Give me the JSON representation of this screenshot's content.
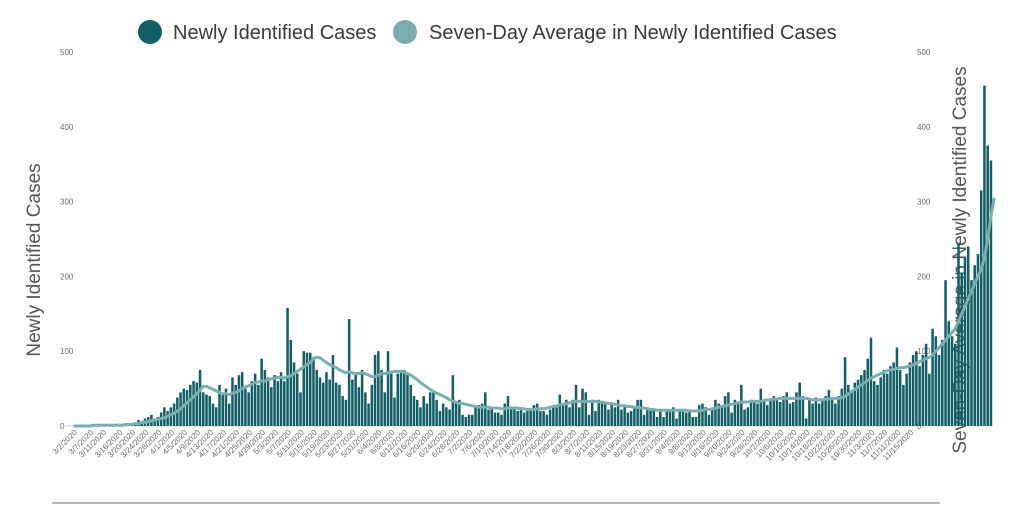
{
  "colors": {
    "bars": "#135f66",
    "average_line": "#7aaeb1",
    "axis": "#d0d0d0",
    "text": "#555555"
  },
  "chart_data": {
    "type": "bar",
    "legend": [
      "Newly Identified Cases",
      "Seven-Day Average in Newly Identified Cases"
    ],
    "legend_position": "top",
    "ylabel_left": "Newly Identified Cases",
    "ylabel_right": "Seven-Day Average in Newly Identified Cases",
    "ylim": [
      0,
      500
    ],
    "yticks": [
      0,
      100,
      200,
      300,
      400,
      500
    ],
    "right_yticks": [
      0,
      100,
      200,
      300,
      400,
      500
    ],
    "grid": false,
    "x_start": "3/2/2020",
    "x_end": "11/17/2020",
    "xtick_labels": [
      "3/2/2020",
      "3/7/2020",
      "3/11/2020",
      "3/16/2020",
      "3/20/2020",
      "3/24/2020",
      "3/28/2020",
      "4/1/2020",
      "4/5/2020",
      "4/9/2020",
      "4/13/2020",
      "4/17/2020",
      "4/21/2020",
      "4/25/2020",
      "4/29/2020",
      "5/3/2020",
      "5/7/2020",
      "5/11/2020",
      "5/15/2020",
      "5/19/2020",
      "5/23/2020",
      "5/27/2020",
      "5/31/2020",
      "6/4/2020",
      "6/8/2020",
      "6/12/2020",
      "6/16/2020",
      "6/20/2020",
      "6/24/2020",
      "6/28/2020",
      "7/2/2020",
      "7/6/2020",
      "7/10/2020",
      "7/14/2020",
      "7/18/2020",
      "7/22/2020",
      "7/26/2020",
      "7/30/2020",
      "8/3/2020",
      "8/7/2020",
      "8/11/2020",
      "8/15/2020",
      "8/19/2020",
      "8/23/2020",
      "8/27/2020",
      "8/31/2020",
      "9/4/2020",
      "9/8/2020",
      "9/12/2020",
      "9/16/2020",
      "9/20/2020",
      "9/24/2020",
      "9/28/2020",
      "10/2/2020",
      "10/6/2020",
      "10/10/2020",
      "10/14/2020",
      "10/18/2020",
      "10/22/2020",
      "10/26/2020",
      "10/30/2020",
      "11/3/2020",
      "11/7/2020",
      "11/11/2020",
      "11/15/2020"
    ],
    "series": [
      {
        "name": "Newly Identified Cases",
        "type": "bar",
        "values": [
          0,
          0,
          0,
          0,
          0,
          2,
          1,
          0,
          0,
          0,
          0,
          0,
          0,
          2,
          3,
          2,
          3,
          1,
          4,
          5,
          8,
          6,
          10,
          12,
          15,
          10,
          12,
          18,
          25,
          20,
          25,
          30,
          38,
          45,
          50,
          48,
          55,
          60,
          58,
          75,
          45,
          42,
          40,
          30,
          25,
          55,
          42,
          50,
          30,
          65,
          55,
          68,
          72,
          50,
          45,
          60,
          70,
          55,
          90,
          75,
          65,
          52,
          68,
          60,
          72,
          60,
          158,
          115,
          85,
          70,
          45,
          100,
          98,
          98,
          92,
          75,
          65,
          58,
          72,
          62,
          95,
          58,
          55,
          40,
          35,
          143,
          62,
          72,
          52,
          75,
          45,
          30,
          55,
          95,
          100,
          75,
          45,
          100,
          70,
          38,
          70,
          75,
          75,
          70,
          55,
          40,
          35,
          25,
          40,
          30,
          45,
          45,
          35,
          20,
          30,
          25,
          22,
          68,
          30,
          35,
          15,
          12,
          15,
          15,
          25,
          28,
          30,
          45,
          22,
          25,
          18,
          18,
          15,
          30,
          40,
          22,
          25,
          20,
          25,
          18,
          22,
          22,
          28,
          30,
          20,
          20,
          15,
          22,
          28,
          25,
          42,
          28,
          35,
          25,
          35,
          55,
          25,
          50,
          45,
          15,
          35,
          20,
          35,
          30,
          30,
          22,
          28,
          25,
          35,
          22,
          28,
          18,
          20,
          25,
          35,
          35,
          15,
          25,
          22,
          20,
          12,
          20,
          12,
          22,
          20,
          25,
          10,
          22,
          20,
          18,
          20,
          12,
          12,
          28,
          30,
          25,
          15,
          22,
          35,
          30,
          28,
          40,
          45,
          18,
          35,
          30,
          55,
          22,
          25,
          35,
          32,
          30,
          50,
          35,
          28,
          35,
          40,
          35,
          32,
          40,
          45,
          30,
          32,
          45,
          58,
          40,
          10,
          35,
          30,
          38,
          30,
          35,
          40,
          48,
          38,
          30,
          40,
          50,
          92,
          55,
          45,
          58,
          62,
          68,
          75,
          90,
          118,
          60,
          55,
          65,
          75,
          70,
          80,
          85,
          105,
          75,
          55,
          70,
          85,
          95,
          100,
          80,
          95,
          110,
          70,
          130,
          120,
          95,
          115,
          195,
          140,
          120,
          110,
          245,
          205,
          225,
          240,
          195,
          215,
          230,
          315,
          455,
          375,
          355
        ]
      },
      {
        "name": "Seven-Day Average in Newly Identified Cases",
        "type": "line",
        "values": [
          0,
          0,
          0,
          0,
          0,
          0,
          1,
          1,
          1,
          1,
          1,
          1,
          1,
          1,
          1,
          1,
          2,
          2,
          2,
          3,
          3,
          5,
          5,
          6,
          7,
          8,
          9,
          10,
          11,
          13,
          15,
          17,
          20,
          23,
          27,
          31,
          35,
          39,
          43,
          48,
          53,
          53,
          51,
          49,
          47,
          45,
          43,
          43,
          42,
          44,
          45,
          47,
          50,
          52,
          54,
          56,
          58,
          59,
          60,
          60,
          62,
          63,
          64,
          65,
          65,
          64,
          66,
          67,
          70,
          73,
          76,
          79,
          82,
          85,
          90,
          92,
          91,
          88,
          85,
          82,
          80,
          78,
          75,
          73,
          71,
          72,
          71,
          70,
          70,
          71,
          70,
          68,
          66,
          66,
          68,
          70,
          70,
          71,
          72,
          73,
          73,
          73,
          72,
          70,
          68,
          65,
          62,
          58,
          55,
          52,
          49,
          46,
          44,
          42,
          40,
          38,
          35,
          33,
          32,
          30,
          30,
          29,
          28,
          27,
          26,
          25,
          25,
          25,
          25,
          24,
          24,
          24,
          23,
          23,
          24,
          24,
          24,
          24,
          23,
          23,
          22,
          22,
          22,
          23,
          23,
          23,
          24,
          25,
          26,
          27,
          28,
          29,
          30,
          31,
          32,
          33,
          33,
          33,
          33,
          33,
          33,
          33,
          32,
          32,
          31,
          30,
          30,
          29,
          28,
          27,
          27,
          26,
          26,
          25,
          25,
          24,
          24,
          23,
          22,
          22,
          21,
          21,
          21,
          21,
          21,
          21,
          21,
          21,
          21,
          21,
          20,
          20,
          20,
          20,
          21,
          22,
          22,
          23,
          24,
          25,
          26,
          27,
          28,
          29,
          30,
          31,
          32,
          32,
          32,
          33,
          33,
          33,
          33,
          34,
          35,
          35,
          36,
          36,
          37,
          37,
          37,
          37,
          37,
          37,
          37,
          37,
          37,
          36,
          35,
          35,
          35,
          35,
          36,
          36,
          37,
          37,
          37,
          38,
          40,
          43,
          46,
          49,
          52,
          55,
          58,
          61,
          64,
          66,
          68,
          70,
          72,
          74,
          75,
          76,
          77,
          78,
          78,
          79,
          80,
          82,
          84,
          86,
          88,
          90,
          92,
          95,
          100,
          105,
          110,
          115,
          120,
          125,
          130,
          140,
          150,
          160,
          170,
          180,
          190,
          200,
          210,
          225,
          250,
          280,
          305
        ]
      }
    ]
  }
}
